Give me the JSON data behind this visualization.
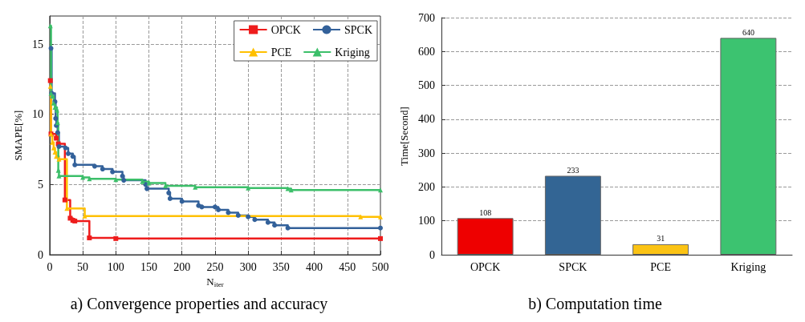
{
  "chart_data": [
    {
      "type": "step",
      "title": "a) Convergence properties and accuracy",
      "xlabel": "N$_{iter}$",
      "ylabel": "SMAPE[%]",
      "xlim": [
        0,
        500
      ],
      "xticks": [
        0,
        50,
        100,
        150,
        200,
        250,
        300,
        350,
        400,
        450,
        500
      ],
      "ylim": [
        0,
        17
      ],
      "yticks": [
        0,
        5,
        10,
        15
      ],
      "grid": true,
      "legend": "top right",
      "series": [
        {
          "name": "OPCK",
          "color": "#ee1c1c",
          "marker": "square",
          "x": [
            1,
            2,
            10,
            13,
            23,
            31,
            35,
            38,
            60,
            100,
            500
          ],
          "values": [
            12.4,
            8.6,
            8.3,
            7.9,
            3.9,
            2.6,
            2.45,
            2.4,
            1.2,
            1.15,
            1.15
          ]
        },
        {
          "name": "SPCK",
          "color": "#33619a",
          "marker": "circle",
          "x": [
            2,
            3,
            8,
            9,
            10,
            12,
            14,
            24,
            28,
            35,
            38,
            68,
            80,
            95,
            110,
            112,
            145,
            147,
            180,
            182,
            200,
            225,
            230,
            250,
            255,
            270,
            285,
            300,
            310,
            330,
            340,
            360,
            500
          ],
          "values": [
            14.7,
            11.5,
            10.9,
            9.7,
            9.2,
            8.7,
            7.7,
            7.6,
            7.2,
            7.0,
            6.4,
            6.3,
            6.1,
            5.9,
            5.6,
            5.3,
            5.0,
            4.7,
            4.4,
            4.0,
            3.8,
            3.5,
            3.4,
            3.4,
            3.2,
            3.0,
            2.8,
            2.7,
            2.5,
            2.3,
            2.1,
            1.9,
            1.9
          ]
        },
        {
          "name": "PCE",
          "color": "#ffc000",
          "marker": "triangle",
          "x": [
            1,
            2,
            4,
            6,
            8,
            10,
            14,
            26,
            53,
            470,
            500
          ],
          "values": [
            12.0,
            8.6,
            8.0,
            7.6,
            7.3,
            7.0,
            6.8,
            3.3,
            2.75,
            2.7,
            2.7
          ]
        },
        {
          "name": "Kriging",
          "color": "#3cbf6a",
          "marker": "triangle",
          "x": [
            1,
            2,
            4,
            6,
            8,
            11,
            12,
            13,
            14,
            50,
            60,
            100,
            140,
            150,
            175,
            220,
            300,
            360,
            365,
            500
          ],
          "values": [
            16.3,
            11.5,
            11.3,
            10.8,
            10.5,
            10.3,
            9.4,
            6.0,
            5.6,
            5.5,
            5.4,
            5.35,
            5.2,
            5.1,
            4.9,
            4.8,
            4.75,
            4.7,
            4.6,
            4.6
          ]
        }
      ]
    },
    {
      "type": "bar",
      "title": "b) Computation time",
      "ylabel": "Time[Second]",
      "categories": [
        "OPCK",
        "SPCK",
        "PCE",
        "Kriging"
      ],
      "values": [
        108,
        233,
        31,
        640
      ],
      "colors": [
        "#ee0000",
        "#336594",
        "#fbc314",
        "#3cc370"
      ],
      "ylim": [
        0,
        700
      ],
      "yticks": [
        0,
        100,
        200,
        300,
        400,
        500,
        600,
        700
      ],
      "grid": "y",
      "data_labels": true
    }
  ]
}
